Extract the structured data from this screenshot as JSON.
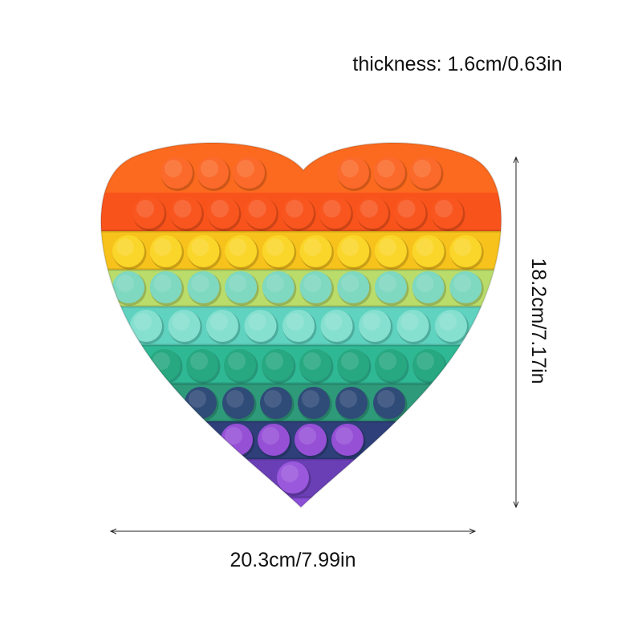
{
  "labels": {
    "thickness": "thickness: 1.6cm/0.63in",
    "height": "18.2cm/7.17in",
    "width": "20.3cm/7.99in"
  }
}
